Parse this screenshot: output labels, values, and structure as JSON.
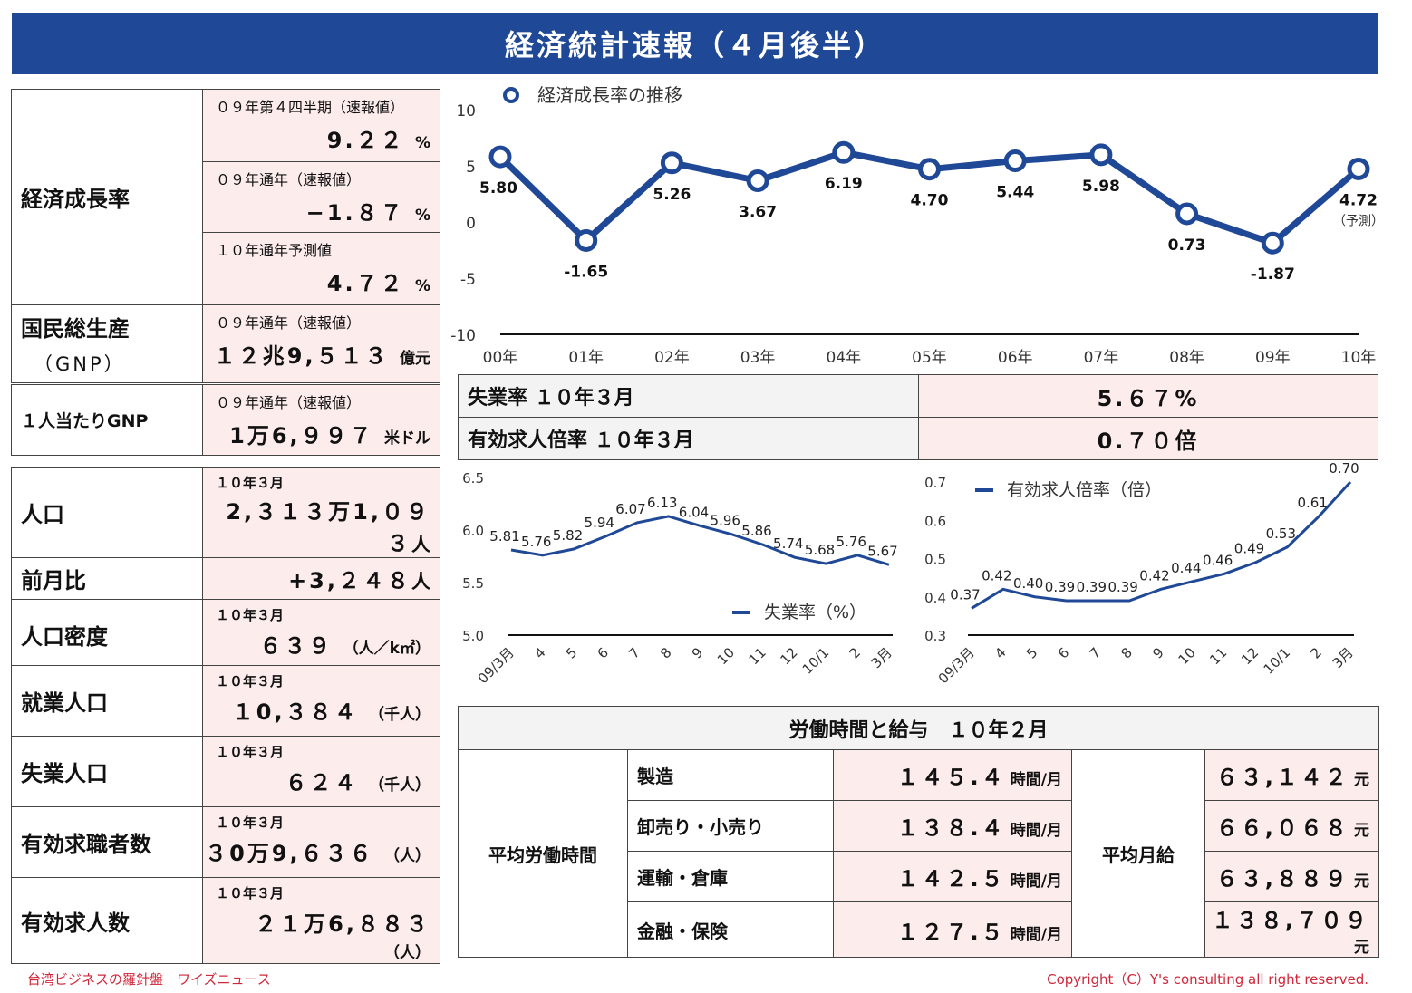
{
  "title": "経済統計速報（４月後半）",
  "growth": {
    "label": "経済成長率",
    "rows": [
      {
        "sub": "０９年第４四半期（速報値）",
        "value": "9.２２",
        "unit": "%"
      },
      {
        "sub": "０９年通年（速報値）",
        "value": "−1.８７",
        "unit": "%"
      },
      {
        "sub": "１０年通年予測値",
        "value": "4.７２",
        "unit": "%"
      }
    ]
  },
  "gnp": {
    "label": "国民総生産",
    "label2": "（GNP）",
    "sub": "０９年通年（速報値）",
    "value": "１２兆9,５１３",
    "unit": "億元"
  },
  "gnp_pc": {
    "label": "１人当たりGNP",
    "sub": "０９年通年（速報値）",
    "value": "1万6,９９７",
    "unit": "米ドル"
  },
  "population": {
    "pop_label": "人口",
    "pop_sub": "１０年３月",
    "pop_value": "2,３１３万1,０９３",
    "pop_unit": "人",
    "mom_label": "前月比",
    "mom_value": "+3,２４８",
    "mom_unit": "人",
    "den_label": "人口密度",
    "den_sub": "１０年３月",
    "den_value": "６３９",
    "den_unit": "（人／k㎡）"
  },
  "employment": [
    {
      "label": "就業人口",
      "sub": "１０年３月",
      "value": "１0,３８４",
      "unit": "（千人）"
    },
    {
      "label": "失業人口",
      "sub": "１０年３月",
      "value": "６２４",
      "unit": "（千人）"
    },
    {
      "label": "有効求職者数",
      "sub": "１０年３月",
      "value": "３0万9,６３６",
      "unit": "（人）"
    },
    {
      "label": "有効求人数",
      "sub": "１０年３月",
      "value": "２１万6,８８３",
      "unit": "（人）"
    }
  ],
  "jobs": {
    "unemp_label": "失業率 １０年３月",
    "unemp_value": "5.６７%",
    "ratio_label": "有効求人倍率 １０年３月",
    "ratio_value": "0.７０倍"
  },
  "labor": {
    "title": "労働時間と給与　１０年２月",
    "hours_label": "平均労働時間",
    "wage_label": "平均月給",
    "rows": [
      {
        "sector": "製造",
        "hours": "１４５.４",
        "hours_unit": "時間/月",
        "wage": "６３,１４２",
        "wage_unit": "元"
      },
      {
        "sector": "卸売り・小売り",
        "hours": "１３８.４",
        "hours_unit": "時間/月",
        "wage": "６６,０６８",
        "wage_unit": "元"
      },
      {
        "sector": "運輸・倉庫",
        "hours": "１４２.５",
        "hours_unit": "時間/月",
        "wage": "６３,８８９",
        "wage_unit": "元"
      },
      {
        "sector": "金融・保険",
        "hours": "１２７.５",
        "hours_unit": "時間/月",
        "wage": "１３８,７０９",
        "wage_unit": "元"
      }
    ]
  },
  "footer": {
    "left": "台湾ビジネスの羅針盤　ワイズニュース",
    "right": "Copyright（C）Y's consulting all right reserved."
  },
  "colors": {
    "brand": "#1f4896",
    "pink": "#fdecec",
    "footer": "#d0273a"
  },
  "chart_data": [
    {
      "type": "line",
      "legend": "経済成長率の推移",
      "categories": [
        "00年",
        "01年",
        "02年",
        "03年",
        "04年",
        "05年",
        "06年",
        "07年",
        "08年",
        "09年",
        "10年"
      ],
      "values": [
        5.8,
        -1.65,
        5.26,
        3.67,
        6.19,
        4.7,
        5.44,
        5.98,
        0.73,
        -1.87,
        4.72
      ],
      "labels": [
        "5.80",
        "-1.65",
        "5.26",
        "3.67",
        "6.19",
        "4.70",
        "5.44",
        "5.98",
        "0.73",
        "-1.87",
        "4.72"
      ],
      "annotation": "（予測）",
      "yticks": [
        "10",
        "5",
        "0",
        "-5",
        "-10"
      ],
      "ylim": [
        -10,
        10
      ]
    },
    {
      "type": "line",
      "legend": "失業率（%）",
      "categories": [
        "09/3月",
        "4",
        "5",
        "6",
        "7",
        "8",
        "9",
        "10",
        "11",
        "12",
        "10/1",
        "2",
        "3月"
      ],
      "values": [
        5.81,
        5.76,
        5.82,
        5.94,
        6.07,
        6.13,
        6.04,
        5.96,
        5.86,
        5.74,
        5.68,
        5.76,
        5.67
      ],
      "labels": [
        "5.81",
        "5.76",
        "5.82",
        "5.94",
        "6.07",
        "6.13",
        "6.04",
        "5.96",
        "5.86",
        "5.74",
        "5.68",
        "5.76",
        "5.67"
      ],
      "yticks": [
        "6.5",
        "6.0",
        "5.5",
        "5.0"
      ],
      "ylim": [
        5.0,
        6.5
      ]
    },
    {
      "type": "line",
      "legend": "有効求人倍率（倍）",
      "categories": [
        "09/3月",
        "4",
        "5",
        "6",
        "7",
        "8",
        "9",
        "10",
        "11",
        "12",
        "10/1",
        "2",
        "3月"
      ],
      "values": [
        0.37,
        0.42,
        0.4,
        0.39,
        0.39,
        0.39,
        0.42,
        0.44,
        0.46,
        0.49,
        0.53,
        0.61,
        0.7
      ],
      "labels": [
        "0.37",
        "0.42",
        "0.40",
        "0.39",
        "0.39",
        "0.39",
        "0.42",
        "0.44",
        "0.46",
        "0.49",
        "0.53",
        "0.61",
        "0.70"
      ],
      "yticks": [
        "0.7",
        "0.6",
        "0.5",
        "0.4",
        "0.3"
      ],
      "ylim": [
        0.3,
        0.7
      ]
    }
  ]
}
